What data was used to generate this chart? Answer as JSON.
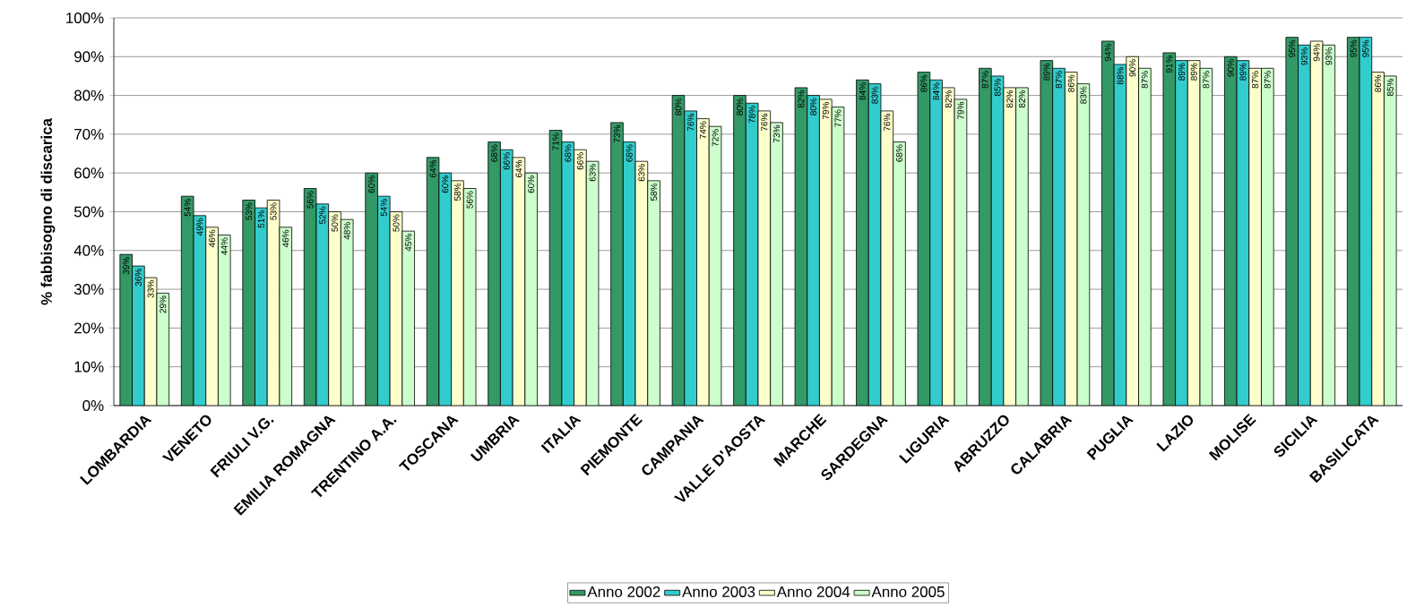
{
  "chart_data": {
    "type": "bar",
    "ylabel": "% fabbisogno di discarica",
    "categories": [
      "LOMBARDIA",
      "VENETO",
      "FRIULI V.G.",
      "EMILIA ROMAGNA",
      "TRENTINO A.A.",
      "TOSCANA",
      "UMBRIA",
      "ITALIA",
      "PIEMONTE",
      "CAMPANIA",
      "VALLE D'AOSTA",
      "MARCHE",
      "SARDEGNA",
      "LIGURIA",
      "ABRUZZO",
      "CALABRIA",
      "PUGLIA",
      "LAZIO",
      "MOLISE",
      "SICILIA",
      "BASILICATA"
    ],
    "series": [
      {
        "name": "Anno 2002",
        "color": "#339966",
        "values": [
          39,
          54,
          53,
          56,
          60,
          64,
          68,
          71,
          73,
          80,
          80,
          82,
          84,
          86,
          87,
          89,
          94,
          91,
          90,
          95,
          95
        ],
        "value_labels": [
          "39%",
          "54%",
          "53%",
          "56%",
          "60%",
          "64%",
          "68%",
          "71%",
          "73%",
          "80%",
          "80%",
          "82%",
          "84%",
          "86%",
          "87%",
          "89%",
          "94%",
          "91%",
          "90%",
          "95%",
          "95%"
        ]
      },
      {
        "name": "Anno 2003",
        "color": "#33cccc",
        "values": [
          36,
          49,
          51,
          52,
          54,
          60,
          66,
          68,
          68,
          76,
          78,
          80,
          83,
          84,
          85,
          87,
          88,
          89,
          89,
          93,
          95
        ],
        "value_labels": [
          "36%",
          "49%",
          "51%",
          "52%",
          "54%",
          "60%",
          "66%",
          "68%",
          "68%",
          "76%",
          "78%",
          "80%",
          "83%",
          "84%",
          "85%",
          "87%",
          "88%",
          "89%",
          "89%",
          "93%",
          "95%"
        ]
      },
      {
        "name": "Anno 2004",
        "color": "#ffffcc",
        "values": [
          33,
          46,
          53,
          50,
          50,
          58,
          64,
          66,
          63,
          74,
          76,
          79,
          76,
          82,
          82,
          86,
          90,
          89,
          87,
          94,
          86
        ],
        "value_labels": [
          "33%",
          "46%",
          "53%",
          "50%",
          "50%",
          "58%",
          "64%",
          "66%",
          "63%",
          "74%",
          "76%",
          "79%",
          "76%",
          "82%",
          "82%",
          "86%",
          "90%",
          "89%",
          "87%",
          "94%",
          "86%"
        ]
      },
      {
        "name": "Anno 2005",
        "color": "#ccffcc",
        "values": [
          29,
          44,
          46,
          48,
          45,
          56,
          60,
          63,
          58,
          72,
          73,
          77,
          68,
          79,
          82,
          83,
          87,
          87,
          87,
          93,
          85
        ],
        "value_labels": [
          "29%",
          "44%",
          "46%",
          "48%",
          "45%",
          "56%",
          "60%",
          "63%",
          "58%",
          "72%",
          "73%",
          "77%",
          "68%",
          "79%",
          "82%",
          "83%",
          "87%",
          "87%",
          "87%",
          "93%",
          "85%"
        ]
      }
    ],
    "ylim": [
      0,
      100
    ],
    "yticks": [
      {
        "value": 0,
        "label": "0%"
      },
      {
        "value": 10,
        "label": "10%"
      },
      {
        "value": 20,
        "label": "20%"
      },
      {
        "value": 30,
        "label": "30%"
      },
      {
        "value": 40,
        "label": "40%"
      },
      {
        "value": 50,
        "label": "50%"
      },
      {
        "value": 60,
        "label": "60%"
      },
      {
        "value": 70,
        "label": "70%"
      },
      {
        "value": 80,
        "label": "80%"
      },
      {
        "value": 90,
        "label": "90%"
      },
      {
        "value": 100,
        "label": "100%"
      }
    ],
    "grid": "y",
    "legend": "bottom"
  }
}
